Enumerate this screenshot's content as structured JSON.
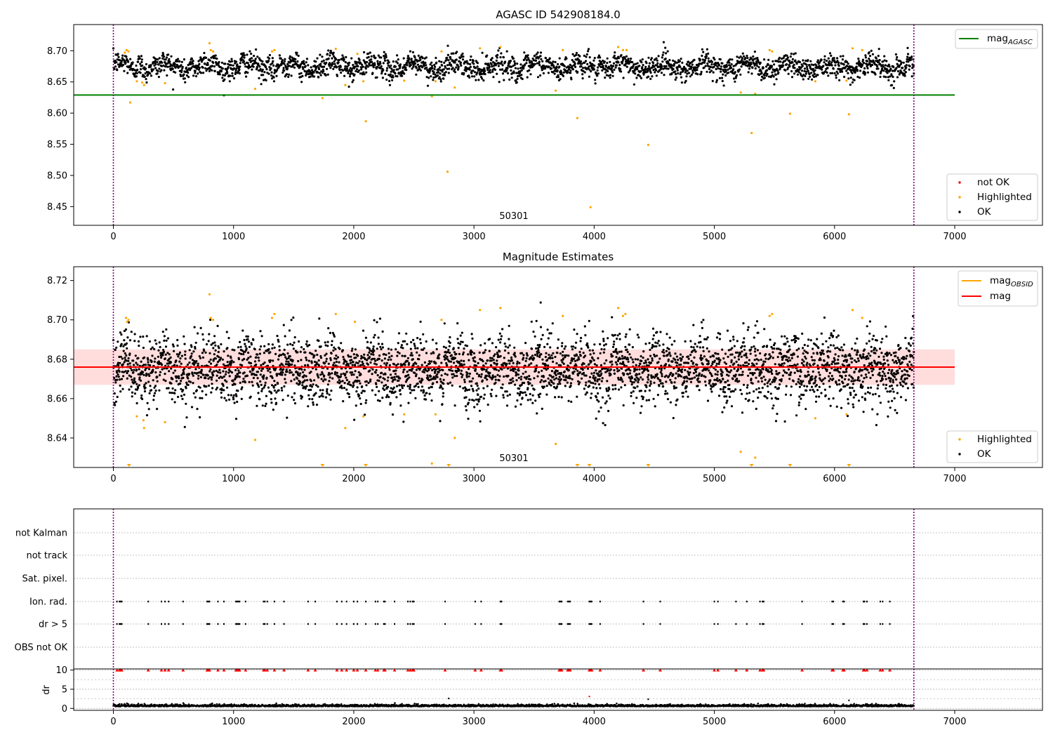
{
  "colors": {
    "ok": "#000000",
    "highlighted": "#ffa500",
    "not_ok": "#ff0000",
    "mag_agasc": "#008000",
    "mag": "#ff0000",
    "mag_obsid": "#ffa500",
    "band": "#ffb4b4",
    "vline": "#800080",
    "grid": "#b0b0b0"
  },
  "xaxis": {
    "ticks": [
      "0",
      "1000",
      "2000",
      "3000",
      "4000",
      "5000",
      "6000",
      "7000"
    ]
  },
  "chart_data": [
    {
      "type": "scatter",
      "title": "AGASC ID 542908184.0",
      "xlim": [
        -330,
        7730
      ],
      "ylim": [
        8.42,
        8.742
      ],
      "yticks": [
        "8.45",
        "8.50",
        "8.55",
        "8.60",
        "8.65",
        "8.70"
      ],
      "obsid_label": "50301",
      "vlines": [
        0,
        6660
      ],
      "hline": {
        "name": "mag",
        "sub": "AGASC",
        "value": 8.629,
        "x_range": [
          -330,
          7000
        ]
      },
      "ok_series": {
        "name": "OK",
        "x_range": [
          0,
          6660
        ],
        "level": 8.675,
        "spread": 0.009,
        "count": 2600
      },
      "highlighted": {
        "name": "Highlighted",
        "points": [
          [
            95,
            8.697
          ],
          [
            110,
            8.701
          ],
          [
            125,
            8.699
          ],
          [
            140,
            8.617
          ],
          [
            195,
            8.651
          ],
          [
            240,
            8.649
          ],
          [
            255,
            8.645
          ],
          [
            430,
            8.648
          ],
          [
            800,
            8.712
          ],
          [
            810,
            8.701
          ],
          [
            830,
            8.699
          ],
          [
            1180,
            8.639
          ],
          [
            1320,
            8.699
          ],
          [
            1340,
            8.701
          ],
          [
            1740,
            8.624
          ],
          [
            1850,
            8.703
          ],
          [
            1930,
            8.645
          ],
          [
            2030,
            8.695
          ],
          [
            2080,
            8.651
          ],
          [
            2100,
            8.587
          ],
          [
            2420,
            8.652
          ],
          [
            2650,
            8.627
          ],
          [
            2680,
            8.651
          ],
          [
            2730,
            8.699
          ],
          [
            2780,
            8.506
          ],
          [
            2840,
            8.641
          ],
          [
            3050,
            8.704
          ],
          [
            3220,
            8.706
          ],
          [
            3680,
            8.636
          ],
          [
            3740,
            8.701
          ],
          [
            3860,
            8.592
          ],
          [
            3970,
            8.449
          ],
          [
            4200,
            8.706
          ],
          [
            4240,
            8.701
          ],
          [
            4270,
            8.701
          ],
          [
            4450,
            8.549
          ],
          [
            5220,
            8.633
          ],
          [
            5310,
            8.568
          ],
          [
            5340,
            8.631
          ],
          [
            5460,
            8.701
          ],
          [
            5480,
            8.699
          ],
          [
            5630,
            8.599
          ],
          [
            5840,
            8.651
          ],
          [
            6100,
            8.652
          ],
          [
            6120,
            8.598
          ],
          [
            6150,
            8.704
          ],
          [
            6230,
            8.701
          ]
        ]
      },
      "not_ok": {
        "name": "not OK"
      },
      "legends": [
        [
          "mag",
          "AGASC"
        ],
        [
          "not OK"
        ],
        [
          "Highlighted"
        ],
        [
          "OK"
        ]
      ]
    },
    {
      "type": "scatter",
      "title": "Magnitude Estimates",
      "xlim": [
        -330,
        7730
      ],
      "ylim": [
        8.625,
        8.727
      ],
      "yticks": [
        "8.64",
        "8.66",
        "8.68",
        "8.70",
        "8.72"
      ],
      "obsid_label": "50301",
      "vlines": [
        0,
        6660
      ],
      "mag_line": {
        "name": "mag",
        "value": 8.676,
        "x_range": [
          -330,
          7000
        ]
      },
      "mag_obsid": {
        "name": "mag",
        "sub": "OBSID",
        "value": 8.676,
        "band": [
          8.667,
          8.685
        ],
        "x_range": [
          0,
          6660
        ]
      },
      "ok_series": {
        "name": "OK",
        "x_range": [
          0,
          6660
        ],
        "level": 8.675,
        "spread": 0.0085,
        "count": 3800
      },
      "highlighted": {
        "name": "Highlighted",
        "points": [
          [
            105,
            8.701
          ],
          [
            115,
            8.699
          ],
          [
            125,
            8.7
          ],
          [
            195,
            8.651
          ],
          [
            250,
            8.649
          ],
          [
            255,
            8.645
          ],
          [
            430,
            8.648
          ],
          [
            800,
            8.713
          ],
          [
            810,
            8.701
          ],
          [
            830,
            8.7
          ],
          [
            1180,
            8.639
          ],
          [
            1320,
            8.701
          ],
          [
            1340,
            8.703
          ],
          [
            1850,
            8.703
          ],
          [
            1930,
            8.645
          ],
          [
            2010,
            8.699
          ],
          [
            2080,
            8.651
          ],
          [
            2420,
            8.652
          ],
          [
            2650,
            8.627
          ],
          [
            2680,
            8.652
          ],
          [
            2730,
            8.7
          ],
          [
            2840,
            8.64
          ],
          [
            3050,
            8.705
          ],
          [
            3220,
            8.706
          ],
          [
            3680,
            8.637
          ],
          [
            3740,
            8.702
          ],
          [
            4200,
            8.706
          ],
          [
            4240,
            8.702
          ],
          [
            4260,
            8.703
          ],
          [
            5220,
            8.633
          ],
          [
            5340,
            8.63
          ],
          [
            5460,
            8.702
          ],
          [
            5480,
            8.703
          ],
          [
            5840,
            8.65
          ],
          [
            6100,
            8.652
          ],
          [
            6150,
            8.705
          ],
          [
            6230,
            8.701
          ]
        ]
      },
      "below_axis": [
        130,
        1740,
        2100,
        2790,
        3860,
        3960,
        4450,
        5310,
        5630,
        6120
      ],
      "legends": [
        [
          "mag",
          "OBSID"
        ],
        [
          "mag"
        ],
        [
          "Highlighted"
        ],
        [
          "OK"
        ]
      ]
    },
    {
      "type": "scatter",
      "flag_labels": [
        "not Kalman",
        "not track",
        "Sat. pixel.",
        "Ion. rad.",
        "dr > 5",
        "OBS not OK"
      ],
      "flag_x": [
        30,
        50,
        60,
        70,
        290,
        400,
        430,
        460,
        580,
        780,
        790,
        800,
        870,
        920,
        1020,
        1030,
        1040,
        1050,
        1100,
        1250,
        1260,
        1280,
        1340,
        1420,
        1620,
        1680,
        1860,
        1900,
        1940,
        2000,
        2030,
        2100,
        2180,
        2200,
        2250,
        2260,
        2340,
        2450,
        2470,
        2490,
        2500,
        2760,
        3010,
        3060,
        3220,
        3230,
        3710,
        3720,
        3730,
        3780,
        3790,
        3800,
        3960,
        3970,
        3980,
        4050,
        4410,
        4550,
        5000,
        5030,
        5180,
        5270,
        5380,
        5400,
        5410,
        5730,
        5980,
        5990,
        6070,
        6080,
        6240,
        6250,
        6270,
        6380,
        6400,
        6460
      ],
      "vlines": [
        0,
        6660
      ],
      "dr": {
        "ylabel": "dr",
        "yticks": [
          "0",
          "5",
          "10"
        ],
        "ylim": [
          -0.5,
          10.3
        ],
        "level": 0.5,
        "outliers": [
          [
            2790,
            2.6
          ],
          [
            3960,
            3.1
          ],
          [
            4450,
            2.4
          ],
          [
            6120,
            2.1
          ]
        ]
      }
    }
  ]
}
